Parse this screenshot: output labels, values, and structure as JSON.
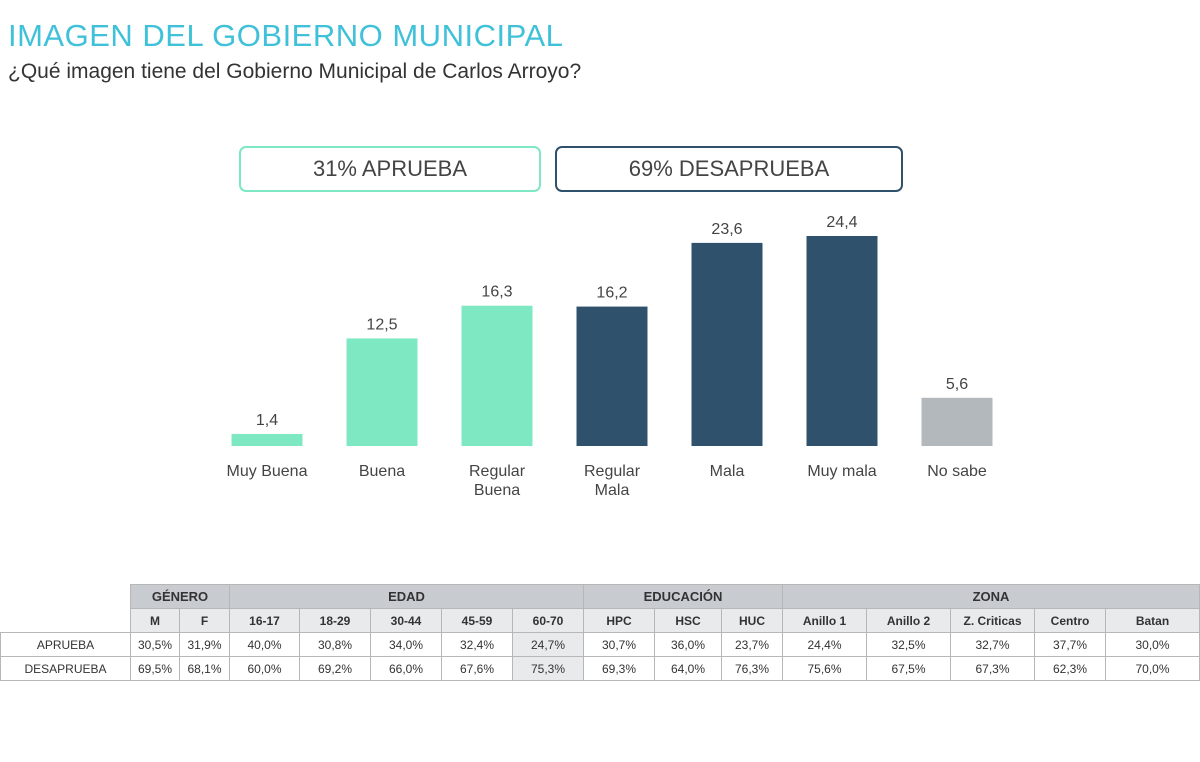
{
  "title": "IMAGEN DEL GOBIERNO MUNICIPAL",
  "subtitle": "¿Qué imagen tiene del Gobierno Municipal de Carlos Arroyo?",
  "summary": {
    "approve": "31% APRUEBA",
    "disapprove": "69% DESAPRUEBA"
  },
  "colors": {
    "approve": "#7de8c1",
    "disapprove": "#2f516c",
    "unknown": "#b3b8bc",
    "title": "#3fc1d9"
  },
  "chart_data": {
    "type": "bar",
    "title": "",
    "xlabel": "",
    "ylabel": "",
    "ylim": [
      0,
      25
    ],
    "grid": false,
    "categories": [
      [
        "Muy Buena"
      ],
      [
        "Buena"
      ],
      [
        "Regular",
        "Buena"
      ],
      [
        "Regular",
        "Mala"
      ],
      [
        "Mala"
      ],
      [
        "Muy mala"
      ],
      [
        "No sabe"
      ]
    ],
    "values": [
      1.4,
      12.5,
      16.3,
      16.2,
      23.6,
      24.4,
      5.6
    ],
    "value_labels": [
      "1,4",
      "12,5",
      "16,3",
      "16,2",
      "23,6",
      "24,4",
      "5,6"
    ],
    "bar_groups": [
      "approve",
      "approve",
      "approve",
      "disapprove",
      "disapprove",
      "disapprove",
      "unknown"
    ]
  },
  "table": {
    "groups": [
      {
        "label": "GÉNERO",
        "span": 2
      },
      {
        "label": "EDAD",
        "span": 5
      },
      {
        "label": "EDUCACIÓN",
        "span": 3
      },
      {
        "label": "ZONA",
        "span": 5
      }
    ],
    "columns": [
      "M",
      "F",
      "16-17",
      "18-29",
      "30-44",
      "45-59",
      "60-70",
      "HPC",
      "HSC",
      "HUC",
      "Anillo 1",
      "Anillo 2",
      "Z. Criticas",
      "Centro",
      "Batan"
    ],
    "rows": [
      {
        "label": "APRUEBA",
        "values": [
          "30,5%",
          "31,9%",
          "40,0%",
          "30,8%",
          "34,0%",
          "32,4%",
          "24,7%",
          "30,7%",
          "36,0%",
          "23,7%",
          "24,4%",
          "32,5%",
          "32,7%",
          "37,7%",
          "30,0%"
        ]
      },
      {
        "label": "DESAPRUEBA",
        "values": [
          "69,5%",
          "68,1%",
          "60,0%",
          "69,2%",
          "66,0%",
          "67,6%",
          "75,3%",
          "69,3%",
          "64,0%",
          "76,3%",
          "75,6%",
          "67,5%",
          "67,3%",
          "62,3%",
          "70,0%"
        ]
      }
    ]
  }
}
